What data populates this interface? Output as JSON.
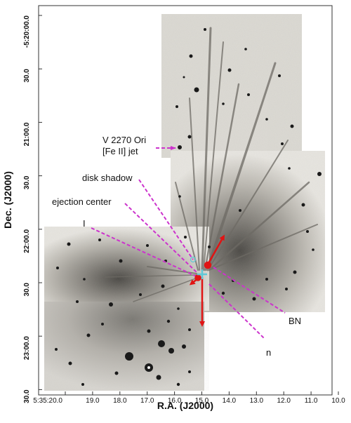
{
  "figure": {
    "xlabel": "R.A. (J2000)",
    "ylabel": "Dec. (J2000)",
    "x_ticks": [
      "5:35:20.0",
      "19.0",
      "18.0",
      "17.0",
      "16.0",
      "15.0",
      "14.0",
      "13.0",
      "12.0",
      "11.0",
      "10.0"
    ],
    "y_ticks": [
      "-5:20:00.0",
      "30.0",
      "21:00.0",
      "30.0",
      "22:00.0",
      "30.0",
      "23:00.0",
      "30.0"
    ],
    "annotations": {
      "v2270_line1": "V 2270 Ori",
      "v2270_line2": "[Fe II] jet",
      "disk_shadow": "disk shadow",
      "ejection_center": "ejection center",
      "source_i": "I",
      "bn": "BN",
      "n": "n"
    },
    "colors": {
      "annotation_lines": "#cc33cc",
      "proper_motion_arrows": "#e01414",
      "ejection_center_marker": "#5fc8d8",
      "background": "#ffffff"
    }
  }
}
